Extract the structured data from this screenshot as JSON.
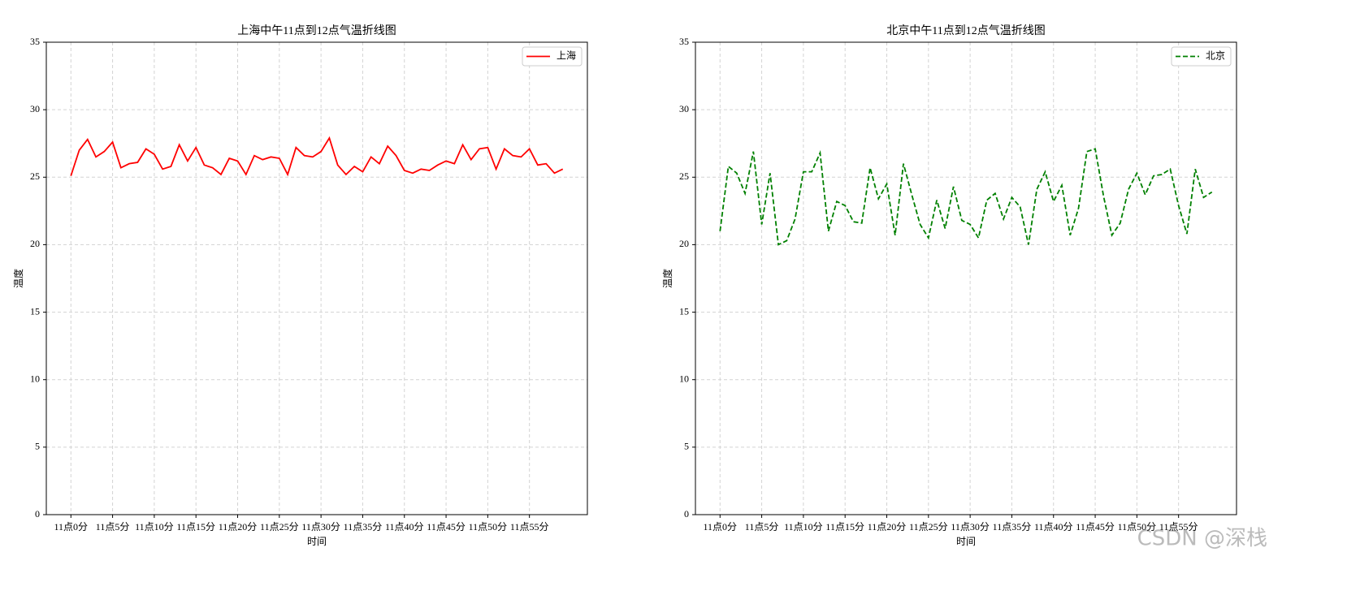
{
  "chart_data": [
    {
      "type": "line",
      "title": "上海中午11点到12点气温折线图",
      "xlabel": "时间",
      "ylabel": "温度",
      "categories": [
        "11点0分",
        null,
        null,
        null,
        null,
        "11点5分",
        null,
        null,
        null,
        null,
        "11点10分",
        null,
        null,
        null,
        null,
        "11点15分",
        null,
        null,
        null,
        null,
        "11点20分",
        null,
        null,
        null,
        null,
        "11点25分",
        null,
        null,
        null,
        null,
        "11点30分",
        null,
        null,
        null,
        null,
        "11点35分",
        null,
        null,
        null,
        null,
        "11点40分",
        null,
        null,
        null,
        null,
        "11点45分",
        null,
        null,
        null,
        null,
        "11点50分",
        null,
        null,
        null,
        null,
        "11点55分",
        null,
        null,
        null,
        null
      ],
      "ylim": [
        0,
        35
      ],
      "yticks": [
        0,
        5,
        10,
        15,
        20,
        25,
        30,
        35
      ],
      "grid": true,
      "legend": "upper right",
      "series": [
        {
          "name": "上海",
          "color": "#ff0000",
          "linestyle": "solid",
          "values": [
            25.1,
            27.0,
            27.8,
            26.5,
            26.9,
            27.6,
            25.7,
            26.0,
            26.1,
            27.1,
            26.7,
            25.6,
            25.8,
            27.4,
            26.2,
            27.2,
            25.9,
            25.7,
            25.2,
            26.4,
            26.2,
            25.2,
            26.6,
            26.3,
            26.5,
            26.4,
            25.2,
            27.2,
            26.6,
            26.5,
            26.9,
            27.9,
            25.9,
            25.2,
            25.8,
            25.4,
            26.5,
            26.0,
            27.3,
            26.6,
            25.5,
            25.3,
            25.6,
            25.5,
            25.9,
            26.2,
            26.0,
            27.4,
            26.3,
            27.1,
            27.2,
            25.6,
            27.1,
            26.6,
            26.5,
            27.1,
            25.9,
            26.0,
            25.3,
            25.6
          ]
        }
      ]
    },
    {
      "type": "line",
      "title": "北京中午11点到12点气温折线图",
      "xlabel": "时间",
      "ylabel": "温度",
      "categories": [
        "11点0分",
        null,
        null,
        null,
        null,
        "11点5分",
        null,
        null,
        null,
        null,
        "11点10分",
        null,
        null,
        null,
        null,
        "11点15分",
        null,
        null,
        null,
        null,
        "11点20分",
        null,
        null,
        null,
        null,
        "11点25分",
        null,
        null,
        null,
        null,
        "11点30分",
        null,
        null,
        null,
        null,
        "11点35分",
        null,
        null,
        null,
        null,
        "11点40分",
        null,
        null,
        null,
        null,
        "11点45分",
        null,
        null,
        null,
        null,
        "11点50分",
        null,
        null,
        null,
        null,
        "11点55分",
        null,
        null,
        null,
        null
      ],
      "ylim": [
        0,
        35
      ],
      "yticks": [
        0,
        5,
        10,
        15,
        20,
        25,
        30,
        35
      ],
      "grid": true,
      "legend": "upper right",
      "series": [
        {
          "name": "北京",
          "color": "#008000",
          "linestyle": "dashed",
          "values": [
            21.0,
            25.8,
            25.3,
            23.8,
            26.9,
            21.5,
            25.3,
            20.0,
            20.3,
            21.9,
            25.4,
            25.4,
            26.8,
            21.0,
            23.2,
            22.9,
            21.7,
            21.6,
            25.7,
            23.4,
            24.5,
            20.7,
            26.0,
            23.7,
            21.5,
            20.5,
            23.3,
            21.2,
            24.3,
            21.8,
            21.5,
            20.5,
            23.3,
            23.8,
            21.9,
            23.5,
            22.8,
            20.0,
            24.1,
            25.4,
            23.2,
            24.4,
            20.7,
            22.7,
            26.9,
            27.1,
            23.6,
            20.7,
            21.6,
            24.1,
            25.3,
            23.7,
            25.1,
            25.2,
            25.6,
            22.9,
            20.8,
            25.6,
            23.5,
            23.9
          ]
        }
      ]
    }
  ],
  "watermark": "CSDN @深栈"
}
